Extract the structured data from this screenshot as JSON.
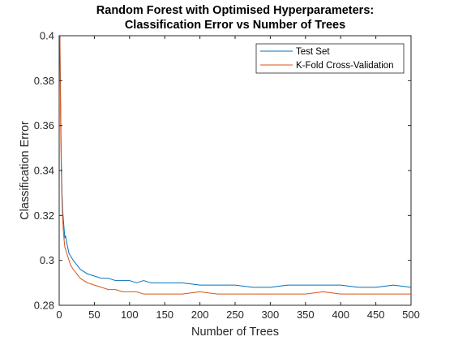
{
  "chart_data": {
    "type": "line",
    "title_line1": "Random Forest with Optimised Hyperparameters:",
    "title_line2": "Classification Error vs Number of Trees",
    "xlabel": "Number of Trees",
    "ylabel": "Classification Error",
    "xlim": [
      0,
      500
    ],
    "ylim": [
      0.28,
      0.4
    ],
    "x_ticks": [
      0,
      50,
      100,
      150,
      200,
      250,
      300,
      350,
      400,
      450,
      500
    ],
    "y_ticks": [
      0.28,
      0.3,
      0.32,
      0.34,
      0.36,
      0.38,
      0.4
    ],
    "y_tick_labels": [
      "0.28",
      "0.3",
      "0.32",
      "0.34",
      "0.36",
      "0.38",
      "0.4"
    ],
    "grid": false,
    "legend_position": "top-right",
    "series": [
      {
        "name": "Test Set",
        "color": "#0072BD",
        "x": [
          1,
          2,
          3,
          4,
          5,
          6,
          7,
          8,
          9,
          10,
          12,
          14,
          16,
          18,
          20,
          25,
          30,
          40,
          50,
          60,
          70,
          80,
          90,
          100,
          110,
          120,
          130,
          140,
          150,
          175,
          200,
          225,
          250,
          275,
          300,
          325,
          350,
          375,
          400,
          425,
          450,
          475,
          500
        ],
        "y": [
          0.4,
          0.37,
          0.345,
          0.33,
          0.322,
          0.318,
          0.314,
          0.31,
          0.311,
          0.309,
          0.306,
          0.303,
          0.302,
          0.301,
          0.3,
          0.298,
          0.296,
          0.294,
          0.293,
          0.292,
          0.292,
          0.291,
          0.291,
          0.291,
          0.29,
          0.291,
          0.29,
          0.29,
          0.29,
          0.29,
          0.289,
          0.289,
          0.289,
          0.288,
          0.288,
          0.289,
          0.289,
          0.289,
          0.289,
          0.288,
          0.288,
          0.289,
          0.288
        ]
      },
      {
        "name": "K-Fold Cross-Validation",
        "color": "#D95319",
        "x": [
          1,
          2,
          3,
          4,
          5,
          6,
          7,
          8,
          9,
          10,
          12,
          14,
          16,
          18,
          20,
          25,
          30,
          40,
          50,
          60,
          70,
          80,
          90,
          100,
          110,
          120,
          130,
          140,
          150,
          175,
          200,
          225,
          250,
          275,
          300,
          325,
          350,
          375,
          400,
          425,
          450,
          475,
          500
        ],
        "y": [
          0.4,
          0.362,
          0.34,
          0.326,
          0.318,
          0.313,
          0.309,
          0.306,
          0.305,
          0.304,
          0.302,
          0.3,
          0.298,
          0.297,
          0.296,
          0.294,
          0.292,
          0.29,
          0.289,
          0.288,
          0.287,
          0.287,
          0.286,
          0.286,
          0.286,
          0.285,
          0.285,
          0.285,
          0.285,
          0.285,
          0.286,
          0.285,
          0.285,
          0.285,
          0.285,
          0.285,
          0.285,
          0.286,
          0.285,
          0.285,
          0.285,
          0.285,
          0.285
        ]
      }
    ]
  }
}
